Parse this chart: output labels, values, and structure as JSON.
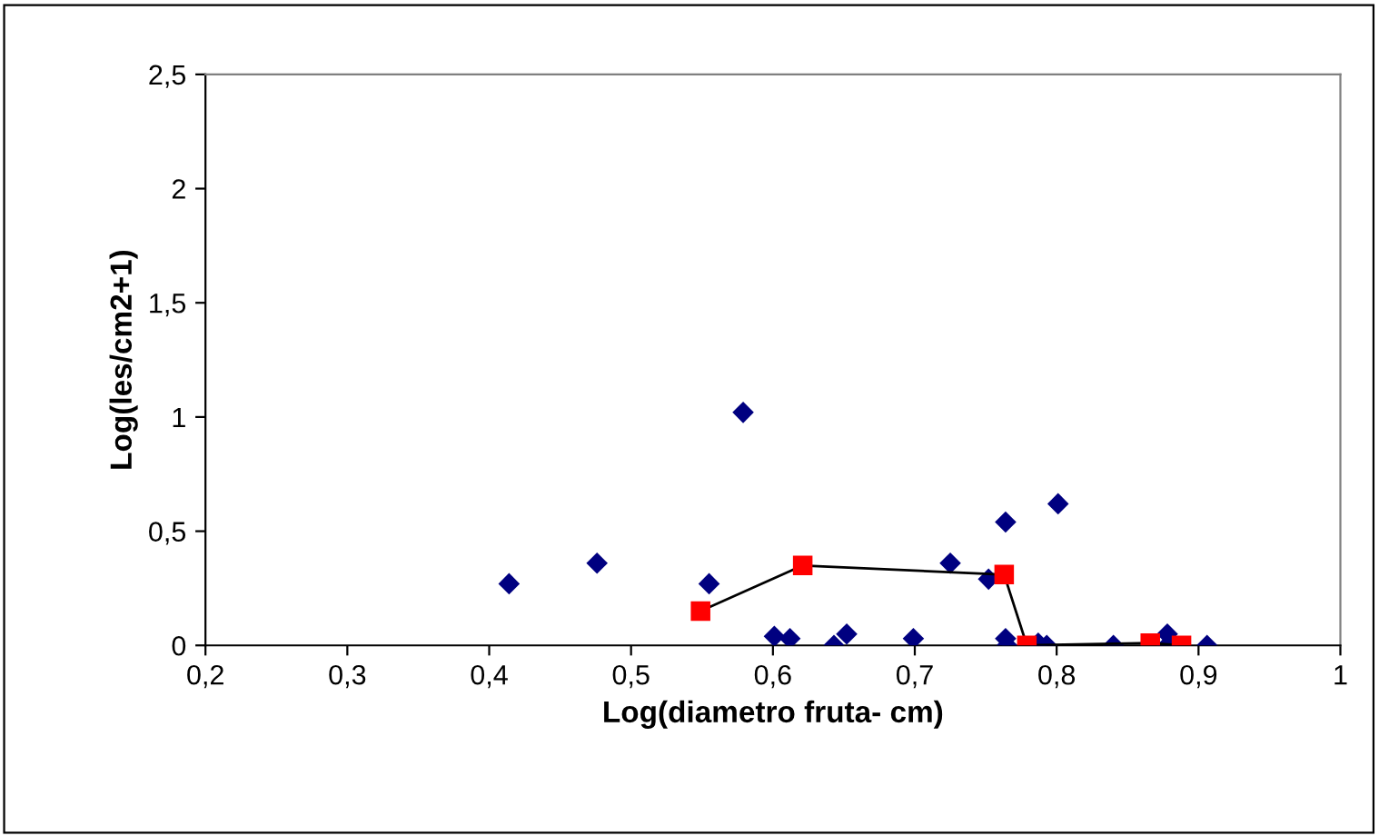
{
  "chart_data": {
    "type": "scatter",
    "xlabel": "Log(diametro fruta- cm)",
    "ylabel": "Log(les/cm2+1)",
    "xlim": [
      0.2,
      1
    ],
    "ylim": [
      0,
      2.5
    ],
    "xticks": [
      {
        "value": 0.2,
        "label": "0,2"
      },
      {
        "value": 0.3,
        "label": "0,3"
      },
      {
        "value": 0.4,
        "label": "0,4"
      },
      {
        "value": 0.5,
        "label": "0,5"
      },
      {
        "value": 0.6,
        "label": "0,6"
      },
      {
        "value": 0.7,
        "label": "0,7"
      },
      {
        "value": 0.8,
        "label": "0,8"
      },
      {
        "value": 0.9,
        "label": "0,9"
      },
      1
    ],
    "yticks": [
      0,
      {
        "value": 0.5,
        "label": "0,5"
      },
      1,
      {
        "value": 1.5,
        "label": "1,5"
      },
      2,
      {
        "value": 2.5,
        "label": "2,5"
      }
    ],
    "grid": false,
    "legend": false,
    "series": [
      {
        "marker": "diamond",
        "color": "#000080",
        "x": [
          0.414,
          0.476,
          0.555,
          0.579,
          0.601,
          0.612,
          0.643,
          0.652,
          0.699,
          0.725,
          0.752,
          0.764,
          0.764,
          0.765,
          0.787,
          0.793,
          0.801,
          0.84,
          0.878,
          0.878,
          0.906
        ],
        "values": [
          0.27,
          0.36,
          0.27,
          1.02,
          0.04,
          0.03,
          0,
          0.05,
          0.03,
          0.36,
          0.29,
          0.54,
          0.03,
          0,
          0.01,
          0,
          0.62,
          0,
          0.05,
          0,
          0
        ]
      },
      {
        "type": "line",
        "marker": "square",
        "color": "#000000",
        "colors": [
          "#ff0000",
          "#ff0000",
          "#ff0000",
          "#ff0000",
          "#ff0000",
          "#ff0000"
        ],
        "x": [
          0.549,
          0.621,
          0.763,
          0.779,
          0.866,
          0.888
        ],
        "values": [
          0.15,
          0.35,
          0.31,
          0,
          0.01,
          0
        ]
      }
    ]
  }
}
